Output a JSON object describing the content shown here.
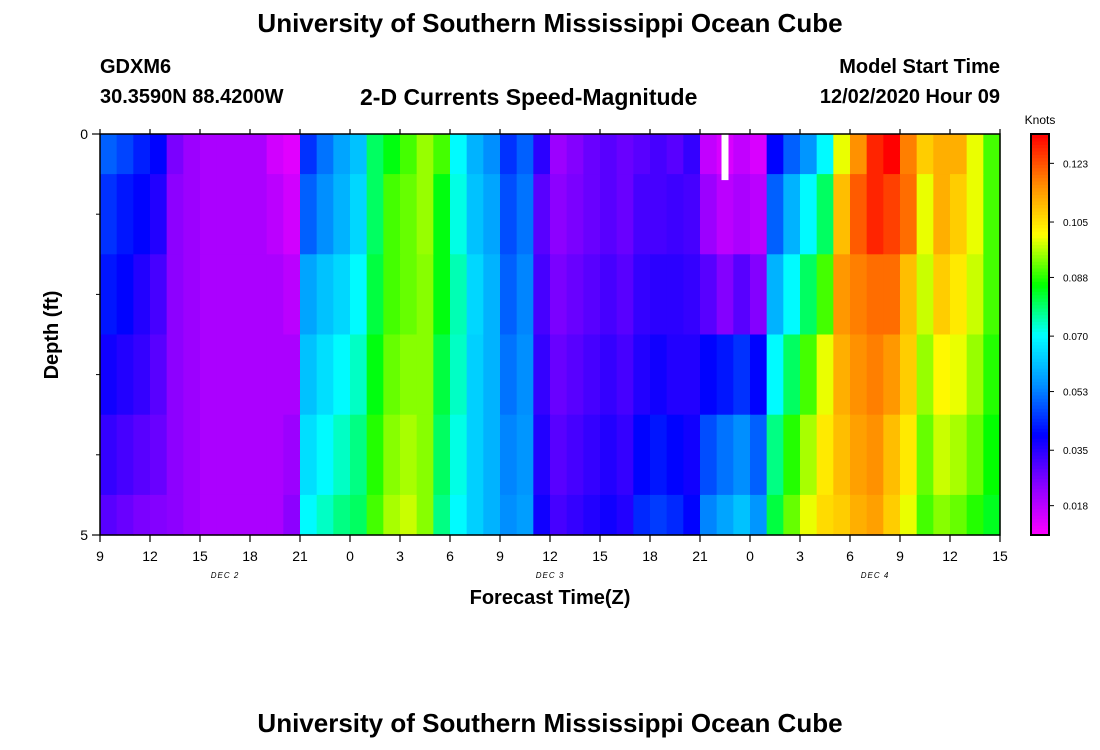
{
  "header": {
    "title": "University of Southern Mississippi Ocean Cube",
    "station_id": "GDXM6",
    "station_coords": "30.3590N 88.4200W",
    "subtitle": "2-D Currents Speed-Magnitude",
    "model_start_label": "Model Start Time",
    "model_start_value": "12/02/2020 Hour 09"
  },
  "footer": {
    "title": "University of Southern Mississippi Ocean Cube"
  },
  "colors": {
    "colormap": [
      "#ff00ff",
      "#8a00ff",
      "#0000ff",
      "#0090ff",
      "#00ffff",
      "#00ff00",
      "#ffff00",
      "#ff8c00",
      "#ff0000"
    ],
    "missing": "#ffffff",
    "frame": "#000000"
  },
  "chart_data": {
    "type": "heatmap",
    "xlabel": "Forecast Time(Z)",
    "ylabel": "Depth (ft)",
    "xlim": [
      0,
      54
    ],
    "ylim": [
      0,
      5
    ],
    "y_inverted": true,
    "x_tick_labels": [
      "9",
      "12",
      "15",
      "18",
      "21",
      "0",
      "3",
      "6",
      "9",
      "12",
      "15",
      "18",
      "21",
      "0",
      "3",
      "6",
      "9",
      "12",
      "15"
    ],
    "date_labels": [
      {
        "label": "DEC 2",
        "x": 7.5
      },
      {
        "label": "DEC 3",
        "x": 27
      },
      {
        "label": "DEC 4",
        "x": 46.5
      }
    ],
    "y_tick_labels": [
      "0",
      "5"
    ],
    "y_minor_ticks": [
      1,
      2,
      3,
      4
    ],
    "colorbar": {
      "title": "Knots",
      "min": 0.009,
      "max": 0.132,
      "ticks": [
        0.018,
        0.035,
        0.053,
        0.07,
        0.088,
        0.105,
        0.123
      ],
      "tick_labels": [
        "0.018",
        "0.035",
        "0.053",
        "0.070",
        "0.088",
        "0.105",
        "0.123"
      ]
    },
    "missing_cells": [
      {
        "x": 37.5,
        "y0": 0,
        "y1": 0.5
      }
    ],
    "depth_bins": [
      0,
      0.5,
      1.5,
      2.5,
      3.5,
      4.5,
      5
    ],
    "time_steps": [
      0,
      1,
      2,
      3,
      4,
      5,
      6,
      7,
      8,
      9,
      10,
      11,
      12,
      13,
      14,
      15,
      16,
      17,
      18,
      19,
      20,
      21,
      22,
      23,
      24,
      25,
      26,
      27,
      28,
      29,
      30,
      31,
      32,
      33,
      34,
      35,
      36,
      37,
      38,
      39,
      40,
      41,
      42,
      43,
      44,
      45,
      46,
      47,
      48,
      49,
      50,
      51,
      52,
      53
    ],
    "values": [
      [
        0.05,
        0.047,
        0.043,
        0.04,
        0.026,
        0.022,
        0.02,
        0.02,
        0.02,
        0.02,
        0.015,
        0.013,
        0.045,
        0.052,
        0.058,
        0.062,
        0.08,
        0.085,
        0.09,
        0.095,
        0.09,
        0.07,
        0.06,
        0.055,
        0.045,
        0.05,
        0.035,
        0.022,
        0.025,
        0.028,
        0.03,
        0.028,
        0.03,
        0.032,
        0.03,
        0.034,
        0.017,
        0.014,
        0.017,
        0.014,
        0.04,
        0.05,
        0.056,
        0.07,
        0.1,
        0.116,
        0.128,
        0.132,
        0.118,
        0.108,
        0.112,
        0.112,
        0.1,
        0.09
      ],
      [
        0.045,
        0.042,
        0.04,
        0.036,
        0.024,
        0.022,
        0.02,
        0.02,
        0.02,
        0.02,
        0.018,
        0.015,
        0.05,
        0.055,
        0.06,
        0.065,
        0.08,
        0.09,
        0.092,
        0.095,
        0.085,
        0.072,
        0.062,
        0.058,
        0.048,
        0.052,
        0.03,
        0.024,
        0.026,
        0.028,
        0.03,
        0.028,
        0.032,
        0.032,
        0.033,
        0.032,
        0.022,
        0.018,
        0.02,
        0.018,
        0.05,
        0.06,
        0.07,
        0.08,
        0.11,
        0.122,
        0.128,
        0.125,
        0.12,
        0.1,
        0.112,
        0.108,
        0.1,
        0.09
      ],
      [
        0.042,
        0.04,
        0.036,
        0.032,
        0.024,
        0.022,
        0.02,
        0.02,
        0.02,
        0.02,
        0.02,
        0.018,
        0.058,
        0.062,
        0.065,
        0.07,
        0.082,
        0.09,
        0.092,
        0.094,
        0.085,
        0.075,
        0.065,
        0.06,
        0.05,
        0.054,
        0.032,
        0.026,
        0.028,
        0.03,
        0.032,
        0.03,
        0.034,
        0.035,
        0.035,
        0.034,
        0.03,
        0.025,
        0.03,
        0.025,
        0.06,
        0.07,
        0.08,
        0.09,
        0.115,
        0.118,
        0.12,
        0.12,
        0.11,
        0.098,
        0.108,
        0.104,
        0.098,
        0.09
      ],
      [
        0.038,
        0.036,
        0.034,
        0.03,
        0.024,
        0.022,
        0.02,
        0.02,
        0.02,
        0.02,
        0.02,
        0.02,
        0.062,
        0.066,
        0.07,
        0.074,
        0.085,
        0.092,
        0.094,
        0.094,
        0.082,
        0.074,
        0.064,
        0.06,
        0.052,
        0.055,
        0.034,
        0.028,
        0.03,
        0.032,
        0.034,
        0.032,
        0.036,
        0.038,
        0.036,
        0.036,
        0.04,
        0.042,
        0.045,
        0.04,
        0.07,
        0.08,
        0.09,
        0.1,
        0.112,
        0.116,
        0.118,
        0.115,
        0.108,
        0.095,
        0.102,
        0.1,
        0.095,
        0.088
      ],
      [
        0.034,
        0.032,
        0.03,
        0.028,
        0.024,
        0.022,
        0.02,
        0.02,
        0.02,
        0.02,
        0.02,
        0.022,
        0.066,
        0.07,
        0.074,
        0.078,
        0.088,
        0.094,
        0.096,
        0.094,
        0.08,
        0.072,
        0.064,
        0.06,
        0.054,
        0.056,
        0.036,
        0.03,
        0.032,
        0.034,
        0.036,
        0.034,
        0.04,
        0.042,
        0.04,
        0.038,
        0.048,
        0.052,
        0.055,
        0.05,
        0.078,
        0.088,
        0.096,
        0.104,
        0.11,
        0.114,
        0.116,
        0.11,
        0.104,
        0.092,
        0.098,
        0.096,
        0.092,
        0.086
      ],
      [
        0.03,
        0.028,
        0.026,
        0.025,
        0.024,
        0.022,
        0.02,
        0.02,
        0.02,
        0.02,
        0.02,
        0.024,
        0.07,
        0.074,
        0.078,
        0.08,
        0.09,
        0.096,
        0.098,
        0.094,
        0.078,
        0.07,
        0.064,
        0.06,
        0.055,
        0.057,
        0.038,
        0.032,
        0.034,
        0.036,
        0.038,
        0.036,
        0.044,
        0.046,
        0.044,
        0.04,
        0.054,
        0.058,
        0.062,
        0.056,
        0.082,
        0.092,
        0.1,
        0.106,
        0.108,
        0.112,
        0.114,
        0.108,
        0.1,
        0.09,
        0.094,
        0.092,
        0.088,
        0.084
      ]
    ]
  }
}
